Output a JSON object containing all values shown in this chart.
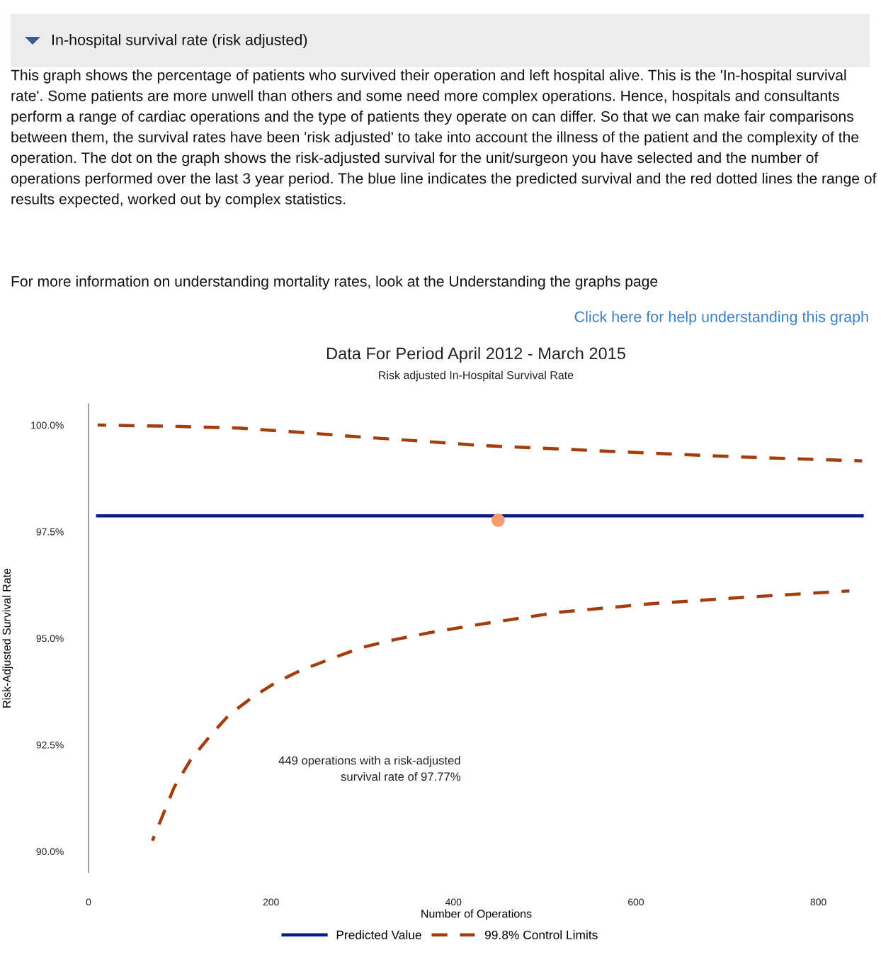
{
  "chart_data": {
    "type": "line",
    "title": "Data For Period April 2012 - March 2015",
    "subtitle": "Risk adjusted In-Hospital Survival Rate",
    "xlabel": "Number of Operations",
    "ylabel": "Risk-Adjusted Survival Rate",
    "annotations": [
      "In-hospital survival rate (risk adjusted)",
      "This graph shows the percentage of patients who survived their operation and left hospital alive. This is the 'In-hospital survival rate'. Some patients are more unwell than others and some need more complex operations. Hence, hospitals and consultants perform a range of cardiac operations and the type of patients they operate on can differ. So that we can make fair comparisons between them, the survival rates have been 'risk adjusted' to take into account the illness of the patient and the complexity of the operation. The dot on the graph shows the risk-adjusted survival for the unit/surgeon you have selected and the number of operations performed over the last 3 year period. The blue line indicates the predicted survival and the red dotted lines the range of results expected, worked out by complex statistics.",
      "For more information on understanding mortality rates, look at the Understanding the graphs page",
      "Click here for help understanding this graph",
      "449 operations with a risk-adjusted\nsurvival rate of 97.77%"
    ],
    "series": [
      {
        "name": "Predicted Value",
        "color": "#0a1a8c",
        "line_style": "solid",
        "x": [
          10,
          848
        ],
        "values": [
          97.87,
          97.87
        ]
      },
      {
        "name": "99.8% Control Limits",
        "color": "#a33d0c",
        "line_style": "dashed",
        "x": [
          10,
          97,
          164,
          232,
          299,
          367,
          431,
          516,
          617,
          718,
          848
        ],
        "values": [
          100.0,
          99.97,
          99.93,
          99.83,
          99.72,
          99.62,
          99.52,
          99.44,
          99.34,
          99.25,
          99.16
        ]
      },
      {
        "color": "#a33d0c",
        "line_style": "dashed",
        "x": [
          70,
          94,
          112,
          134,
          154,
          178,
          205,
          232,
          266,
          299,
          336,
          374,
          424,
          516,
          617,
          718,
          834
        ],
        "values": [
          90.25,
          91.51,
          92.15,
          92.73,
          93.2,
          93.59,
          93.96,
          94.24,
          94.52,
          94.78,
          94.97,
          95.13,
          95.31,
          95.61,
          95.81,
          95.96,
          96.11
        ]
      },
      {
        "color": "#f79a6e",
        "type": "scatter",
        "marker": "circle",
        "x": [
          449
        ],
        "values": [
          97.77
        ]
      }
    ],
    "xlim": [
      0,
      850
    ],
    "ylim": [
      89.5,
      100.5
    ],
    "xticks": [
      0,
      200,
      400,
      600,
      800
    ],
    "yticks": [
      {
        "value": 90,
        "label": "90.0%"
      },
      {
        "value": 92.5,
        "label": "92.5%"
      },
      {
        "value": 95,
        "label": "95.0%"
      },
      {
        "value": 97.5,
        "label": "97.5%"
      },
      {
        "value": 100,
        "label": "100.0%"
      }
    ],
    "grid": false,
    "legend": "bottom"
  }
}
